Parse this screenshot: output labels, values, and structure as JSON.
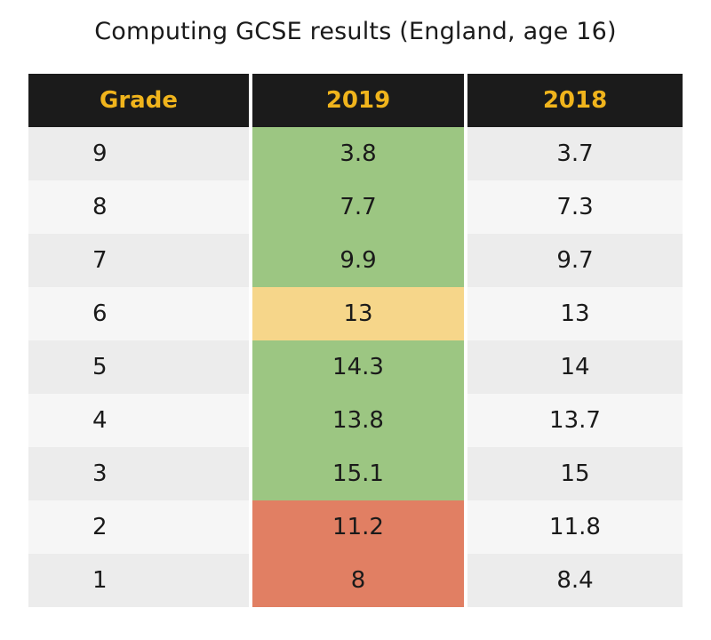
{
  "chart_data": {
    "type": "table",
    "title": "Computing GCSE results (England, age 16)",
    "columns": [
      "Grade",
      "2019",
      "2018"
    ],
    "rows": [
      {
        "grade": "9",
        "y2019": "3.8",
        "y2018": "3.7",
        "status_2019": "green"
      },
      {
        "grade": "8",
        "y2019": "7.7",
        "y2018": "7.3",
        "status_2019": "green"
      },
      {
        "grade": "7",
        "y2019": "9.9",
        "y2018": "9.7",
        "status_2019": "green"
      },
      {
        "grade": "6",
        "y2019": "13",
        "y2018": "13",
        "status_2019": "amber"
      },
      {
        "grade": "5",
        "y2019": "14.3",
        "y2018": "14",
        "status_2019": "green"
      },
      {
        "grade": "4",
        "y2019": "13.8",
        "y2018": "13.7",
        "status_2019": "green"
      },
      {
        "grade": "3",
        "y2019": "15.1",
        "y2018": "15",
        "status_2019": "green"
      },
      {
        "grade": "2",
        "y2019": "11.2",
        "y2018": "11.8",
        "status_2019": "red"
      },
      {
        "grade": "1",
        "y2019": "8",
        "y2018": "8.4",
        "status_2019": "red"
      }
    ]
  },
  "colors": {
    "header_bg": "#1b1b1b",
    "header_text": "#f0b41c",
    "green": "#9cc682",
    "amber": "#f6d68a",
    "red": "#e17f63"
  }
}
